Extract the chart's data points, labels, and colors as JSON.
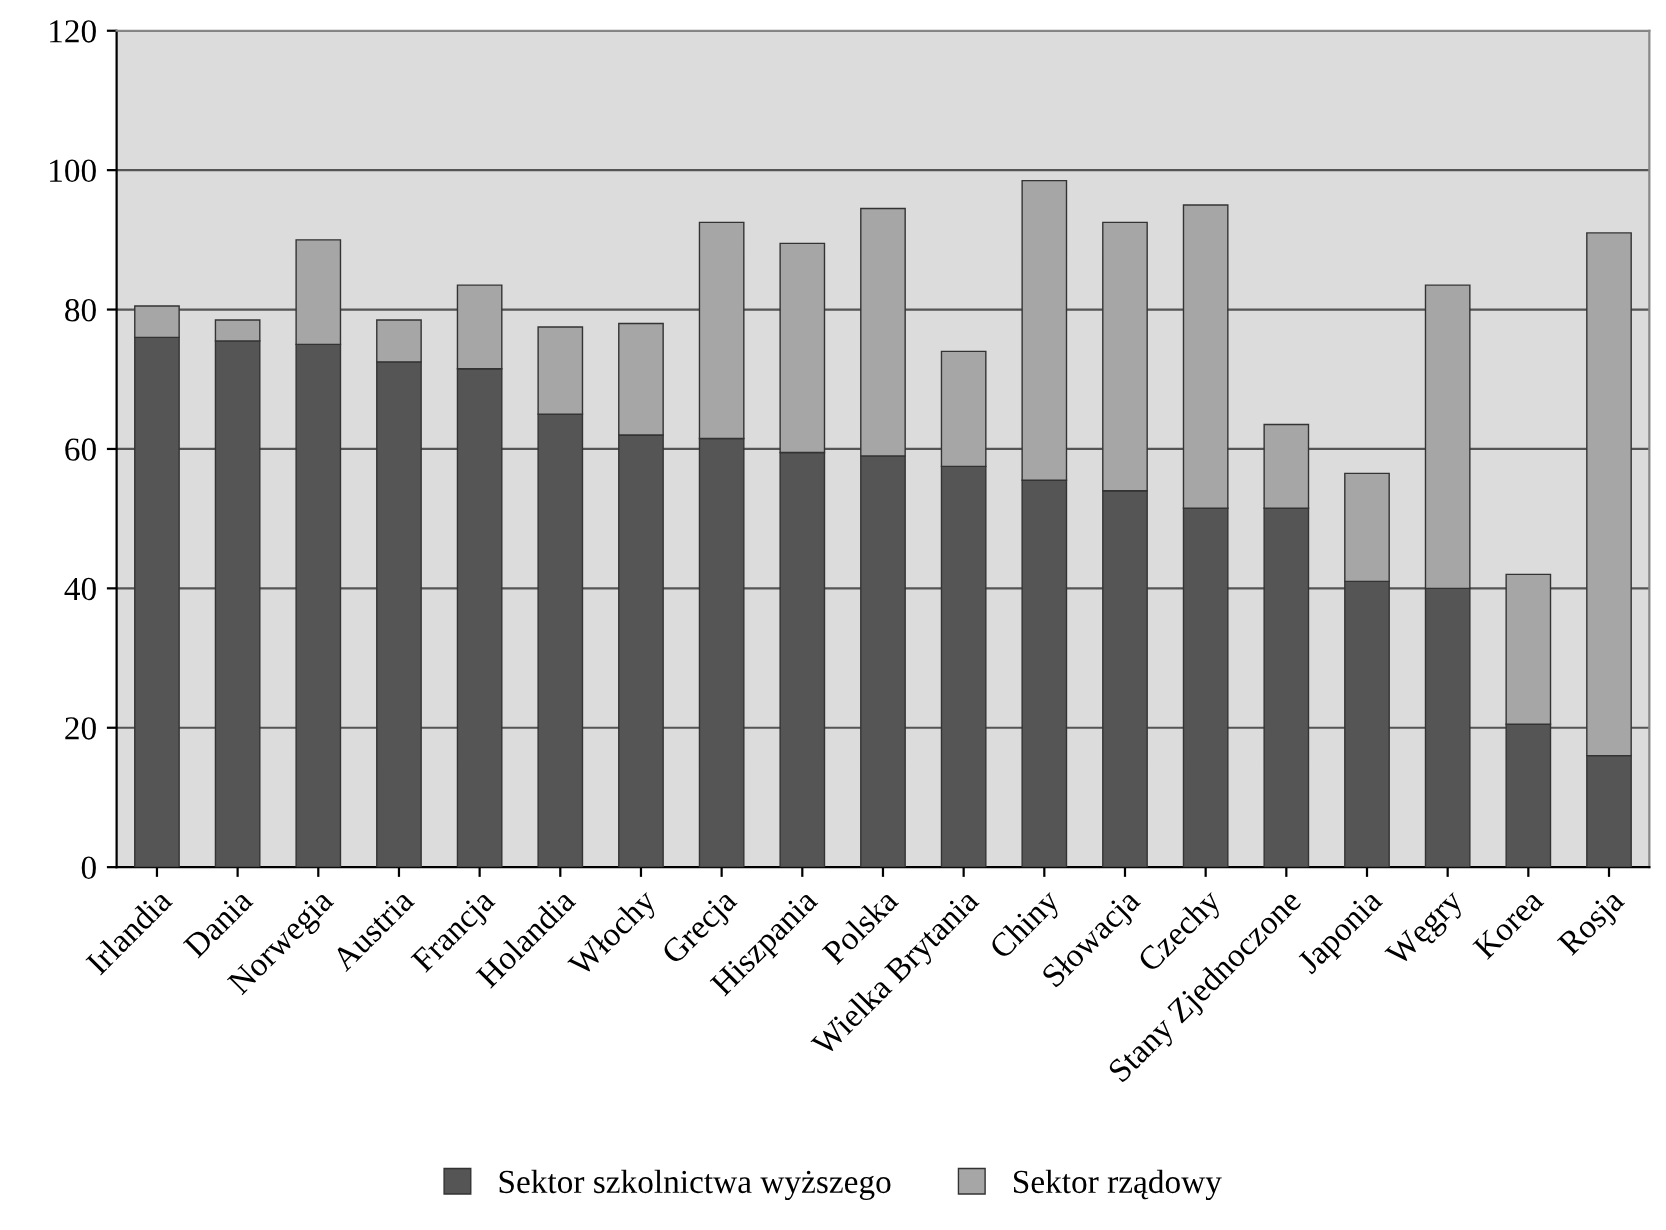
{
  "chart_data": {
    "type": "bar",
    "stacked": true,
    "categories": [
      "Irlandia",
      "Dania",
      "Norwegia",
      "Austria",
      "Francja",
      "Holandia",
      "Włochy",
      "Grecja",
      "Hiszpania",
      "Polska",
      "Wielka Brytania",
      "Chiny",
      "Słowacja",
      "Czechy",
      "Stany Zjednoczone",
      "Japonia",
      "Węgry",
      "Korea",
      "Rosja"
    ],
    "series": [
      {
        "name": "Sektor szkolnictwa wyższego",
        "color": "#555555",
        "values": [
          76,
          75.5,
          75,
          72.5,
          71.5,
          65,
          62,
          61.5,
          59.5,
          59,
          57.5,
          55.5,
          54,
          51.5,
          51.5,
          41,
          40,
          20.5,
          16
        ]
      },
      {
        "name": "Sektor rządowy",
        "color": "#a6a6a6",
        "values": [
          4.5,
          3,
          15,
          6,
          12,
          12.5,
          16,
          31,
          30,
          35.5,
          16.5,
          43,
          38.5,
          43.5,
          12,
          15.5,
          43.5,
          21.5,
          75
        ]
      }
    ],
    "ylim": [
      0,
      120
    ],
    "yticks": [
      0,
      20,
      40,
      60,
      80,
      100,
      120
    ],
    "grid": "y",
    "legend": "bottom"
  }
}
